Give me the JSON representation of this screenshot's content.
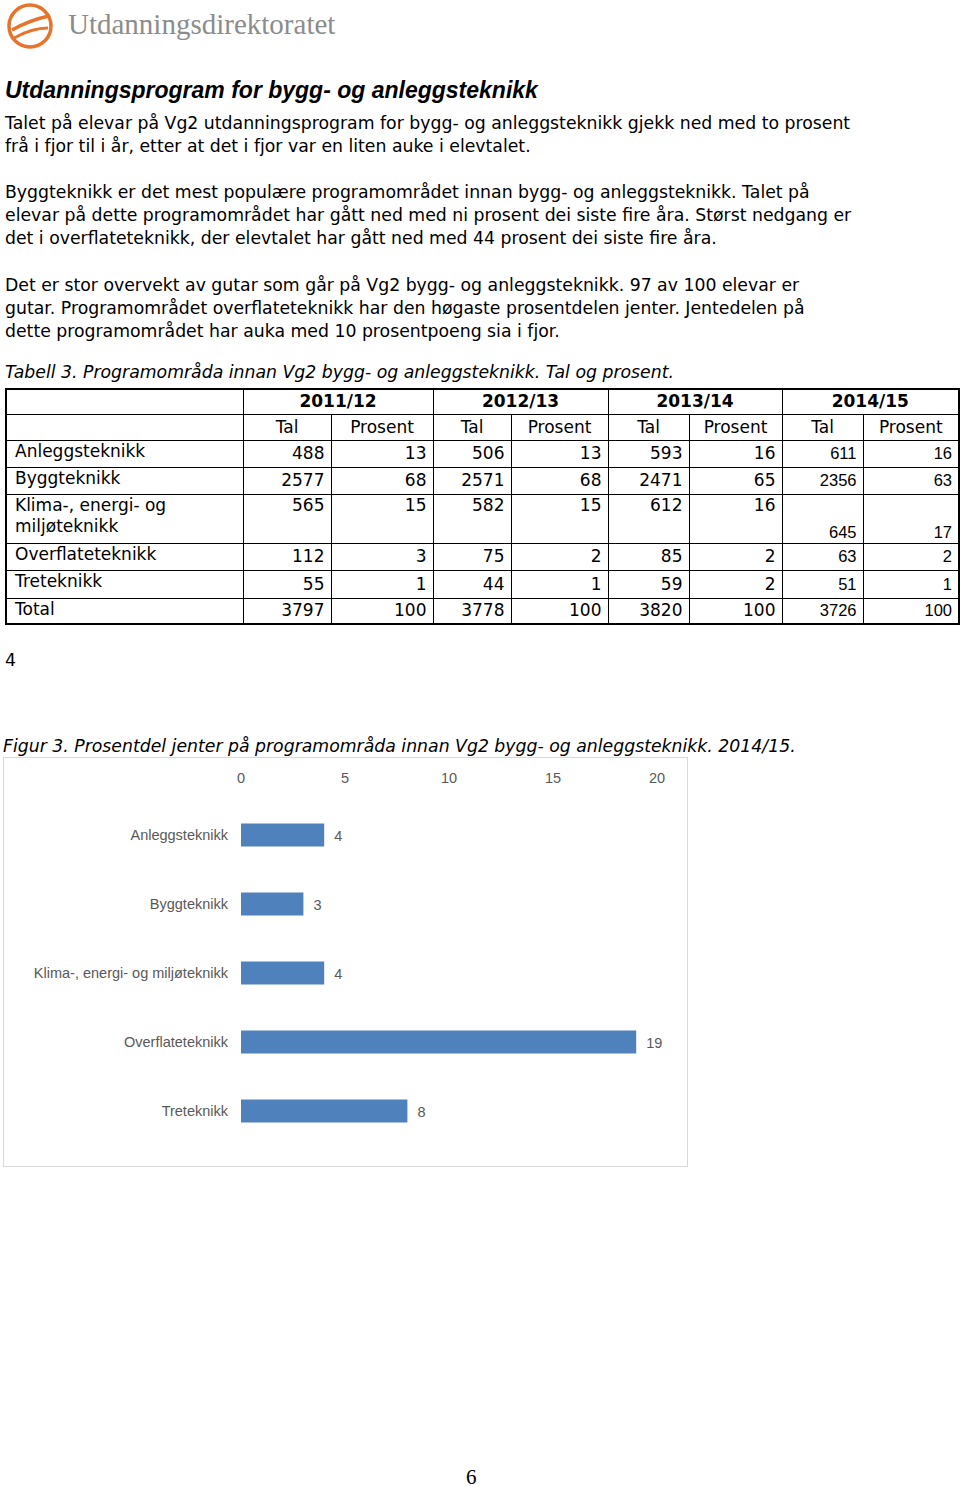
{
  "header": {
    "logo_text": "Utdanningsdirektoratet"
  },
  "title": "Utdanningsprogram for bygg- og anleggsteknikk",
  "paragraphs": [
    [
      "Talet på elevar på Vg2 utdanningsprogram for bygg- og anleggsteknikk gjekk ned med to prosent",
      "frå i fjor til i år, etter at det i fjor var en liten auke i elevtalet."
    ],
    [
      "Byggteknikk er det mest populære programområdet innan bygg- og anleggsteknikk. Talet på",
      "elevar på dette programområdet har gått ned med ni prosent dei siste fire åra. Størst nedgang er",
      "det i overflateteknikk, der elevtalet har gått ned med 44 prosent dei siste fire åra."
    ],
    [
      "Det er stor overvekt av gutar som går på Vg2 bygg- og anleggsteknikk. 97 av 100 elevar er",
      "gutar. Programområdet overflateteknikk har den høgaste prosentdelen jenter. Jentedelen på",
      "dette programområdet har auka med 10 prosentpoeng sia i fjor."
    ]
  ],
  "table": {
    "caption": "Tabell 3. Programområda innan Vg2 bygg- og anleggsteknikk. Tal og prosent.",
    "years": [
      "2011/12",
      "2012/13",
      "2013/14",
      "2014/15"
    ],
    "subheaders": [
      "Tal",
      "Prosent"
    ],
    "rows": [
      {
        "label": "Anleggsteknikk",
        "values": [
          488,
          13,
          506,
          13,
          593,
          16,
          611,
          16
        ]
      },
      {
        "label": "Byggteknikk",
        "values": [
          2577,
          68,
          2571,
          68,
          2471,
          65,
          2356,
          63
        ]
      },
      {
        "label": "Klima-, energi- og miljøteknikk",
        "values": [
          565,
          15,
          582,
          15,
          612,
          16,
          645,
          17
        ]
      },
      {
        "label": "Overflateteknikk",
        "values": [
          112,
          3,
          75,
          2,
          85,
          2,
          63,
          2
        ]
      },
      {
        "label": "Treteknikk",
        "values": [
          55,
          1,
          44,
          1,
          59,
          2,
          51,
          1
        ]
      },
      {
        "label": "Total",
        "values": [
          3797,
          100,
          3778,
          100,
          3820,
          100,
          3726,
          100
        ]
      }
    ]
  },
  "side_note": "4",
  "chart_data": {
    "type": "bar",
    "orientation": "horizontal",
    "title": "Figur 3. Prosentdel jenter på programområda innan Vg2 bygg- og anleggsteknikk. 2014/15.",
    "categories": [
      "Anleggsteknikk",
      "Byggteknikk",
      "Klima-, energi- og miljøteknikk",
      "Overflateteknikk",
      "Treteknikk"
    ],
    "values": [
      4,
      3,
      4,
      19,
      8
    ],
    "color": "#4f81bd",
    "xlim": [
      0,
      20
    ],
    "xticks": [
      0,
      5,
      10,
      15,
      20
    ],
    "grid": false,
    "data_labels": true
  },
  "page_number": "6"
}
